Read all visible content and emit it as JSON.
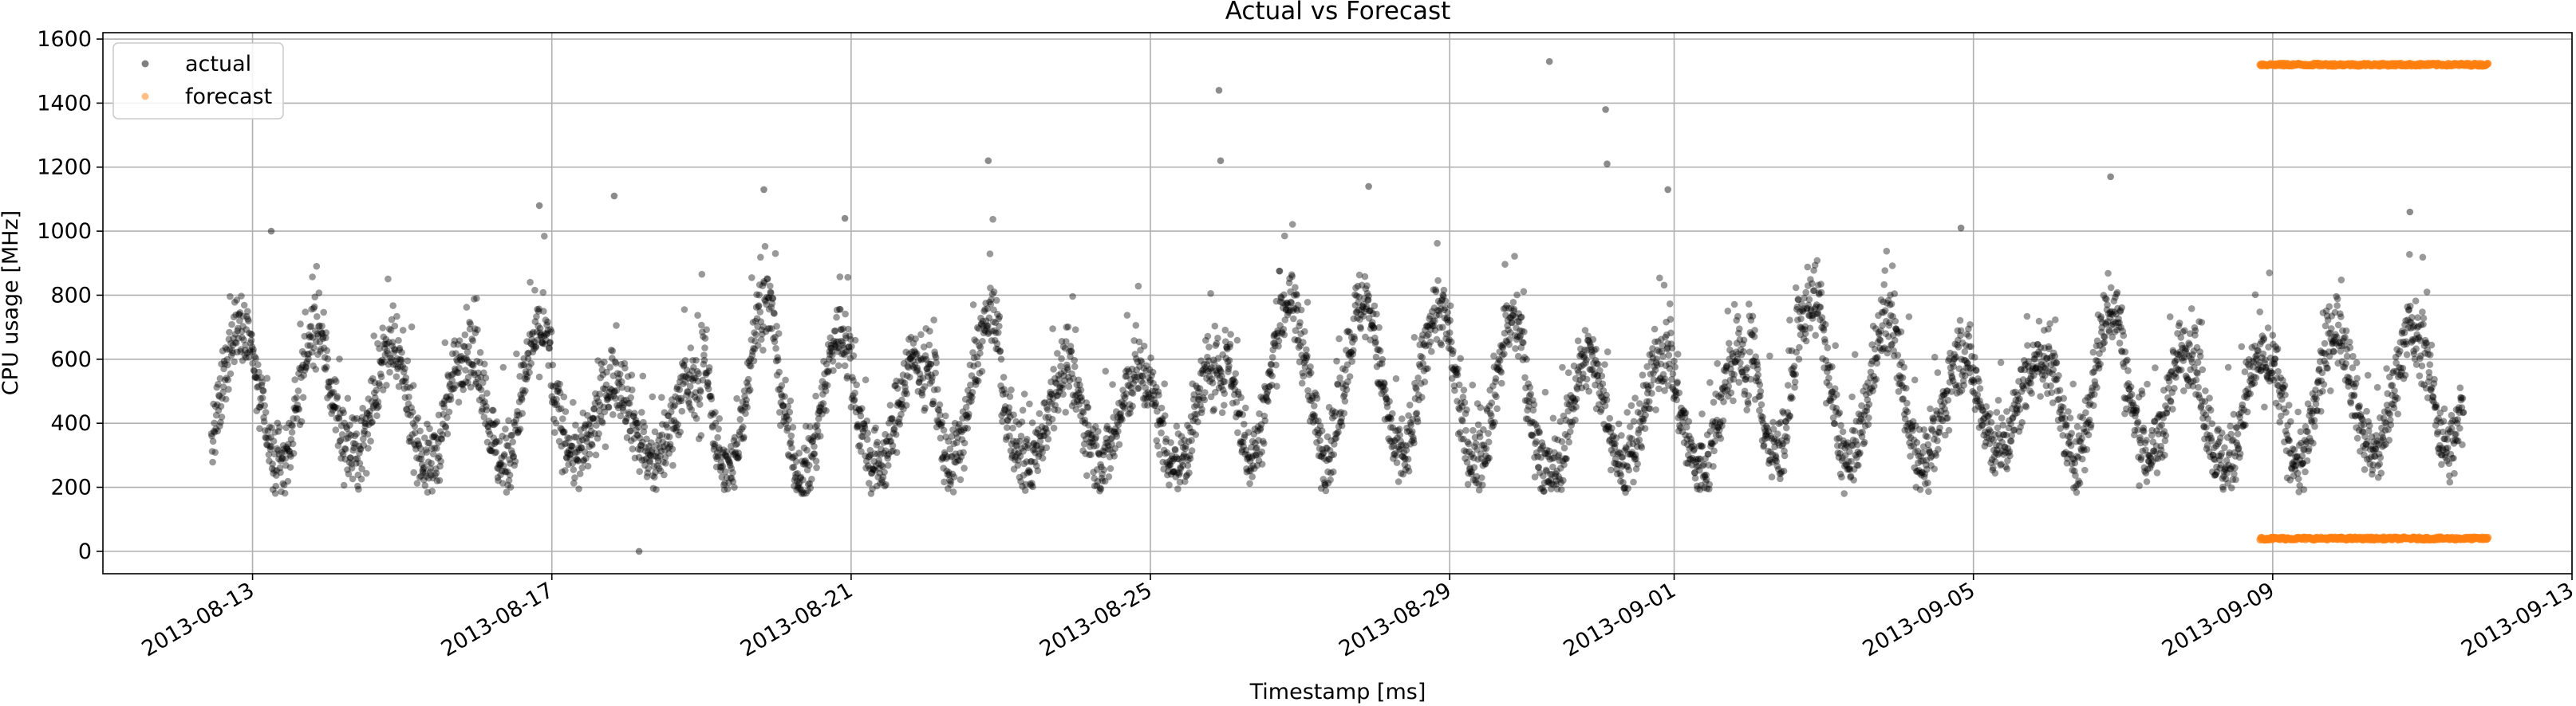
{
  "chart_data": {
    "type": "scatter",
    "title": "Actual vs Forecast",
    "xlabel": "Timestamp [ms]",
    "ylabel": "CPU usage [MHz]",
    "x_range": [
      "2013-08-11",
      "2013-09-13"
    ],
    "ylim": [
      -70,
      1620
    ],
    "x_ticks": [
      "2013-08-13",
      "2013-08-17",
      "2013-08-21",
      "2013-08-25",
      "2013-08-29",
      "2013-09-01",
      "2013-09-05",
      "2013-09-09",
      "2013-09-13"
    ],
    "y_ticks": [
      0,
      200,
      400,
      600,
      800,
      1000,
      1200,
      1400,
      1600
    ],
    "grid": true,
    "legend": {
      "position": "top-left"
    },
    "series": [
      {
        "name": "actual",
        "color": "#000000",
        "pattern": "daily cycle",
        "x_start": "2013-08-12",
        "x_end": "2013-09-11",
        "daily_lows": [
          290,
          260,
          300,
          270,
          280,
          300,
          280,
          240,
          230,
          250,
          280,
          270,
          290,
          270,
          300,
          310,
          290,
          280,
          240,
          260,
          250,
          300,
          270,
          280,
          320,
          290,
          300,
          270,
          280,
          300,
          320
        ],
        "daily_highs": [
          720,
          680,
          620,
          630,
          690,
          540,
          520,
          780,
          680,
          600,
          720,
          560,
          560,
          580,
          780,
          780,
          760,
          720,
          600,
          620,
          600,
          800,
          720,
          620,
          600,
          760,
          640,
          600,
          700,
          680,
          780
        ],
        "outliers": [
          {
            "x": "2013-08-13 06:00",
            "y": 1000
          },
          {
            "x": "2013-08-16 20:00",
            "y": 1080
          },
          {
            "x": "2013-08-17 20:00",
            "y": 1110
          },
          {
            "x": "2013-08-18 04:00",
            "y": 0
          },
          {
            "x": "2013-08-19 20:00",
            "y": 1130
          },
          {
            "x": "2013-08-20 22:00",
            "y": 1040
          },
          {
            "x": "2013-08-22 20:00",
            "y": 1220
          },
          {
            "x": "2013-08-25 22:00",
            "y": 1440
          },
          {
            "x": "2013-08-25 22:30",
            "y": 1220
          },
          {
            "x": "2013-08-27 22:00",
            "y": 1140
          },
          {
            "x": "2013-08-30 08:00",
            "y": 1530
          },
          {
            "x": "2013-08-31 02:00",
            "y": 1380
          },
          {
            "x": "2013-08-31 02:30",
            "y": 1210
          },
          {
            "x": "2013-08-31 22:00",
            "y": 1130
          },
          {
            "x": "2013-09-04 20:00",
            "y": 1010
          },
          {
            "x": "2013-09-06 20:00",
            "y": 1170
          },
          {
            "x": "2013-09-10 20:00",
            "y": 1060
          }
        ]
      },
      {
        "name": "forecast",
        "color": "#ff7f0e",
        "levels": [
          1520,
          40
        ],
        "x_start": "2013-09-08 20:00",
        "x_end": "2013-09-11 21:00"
      }
    ]
  }
}
